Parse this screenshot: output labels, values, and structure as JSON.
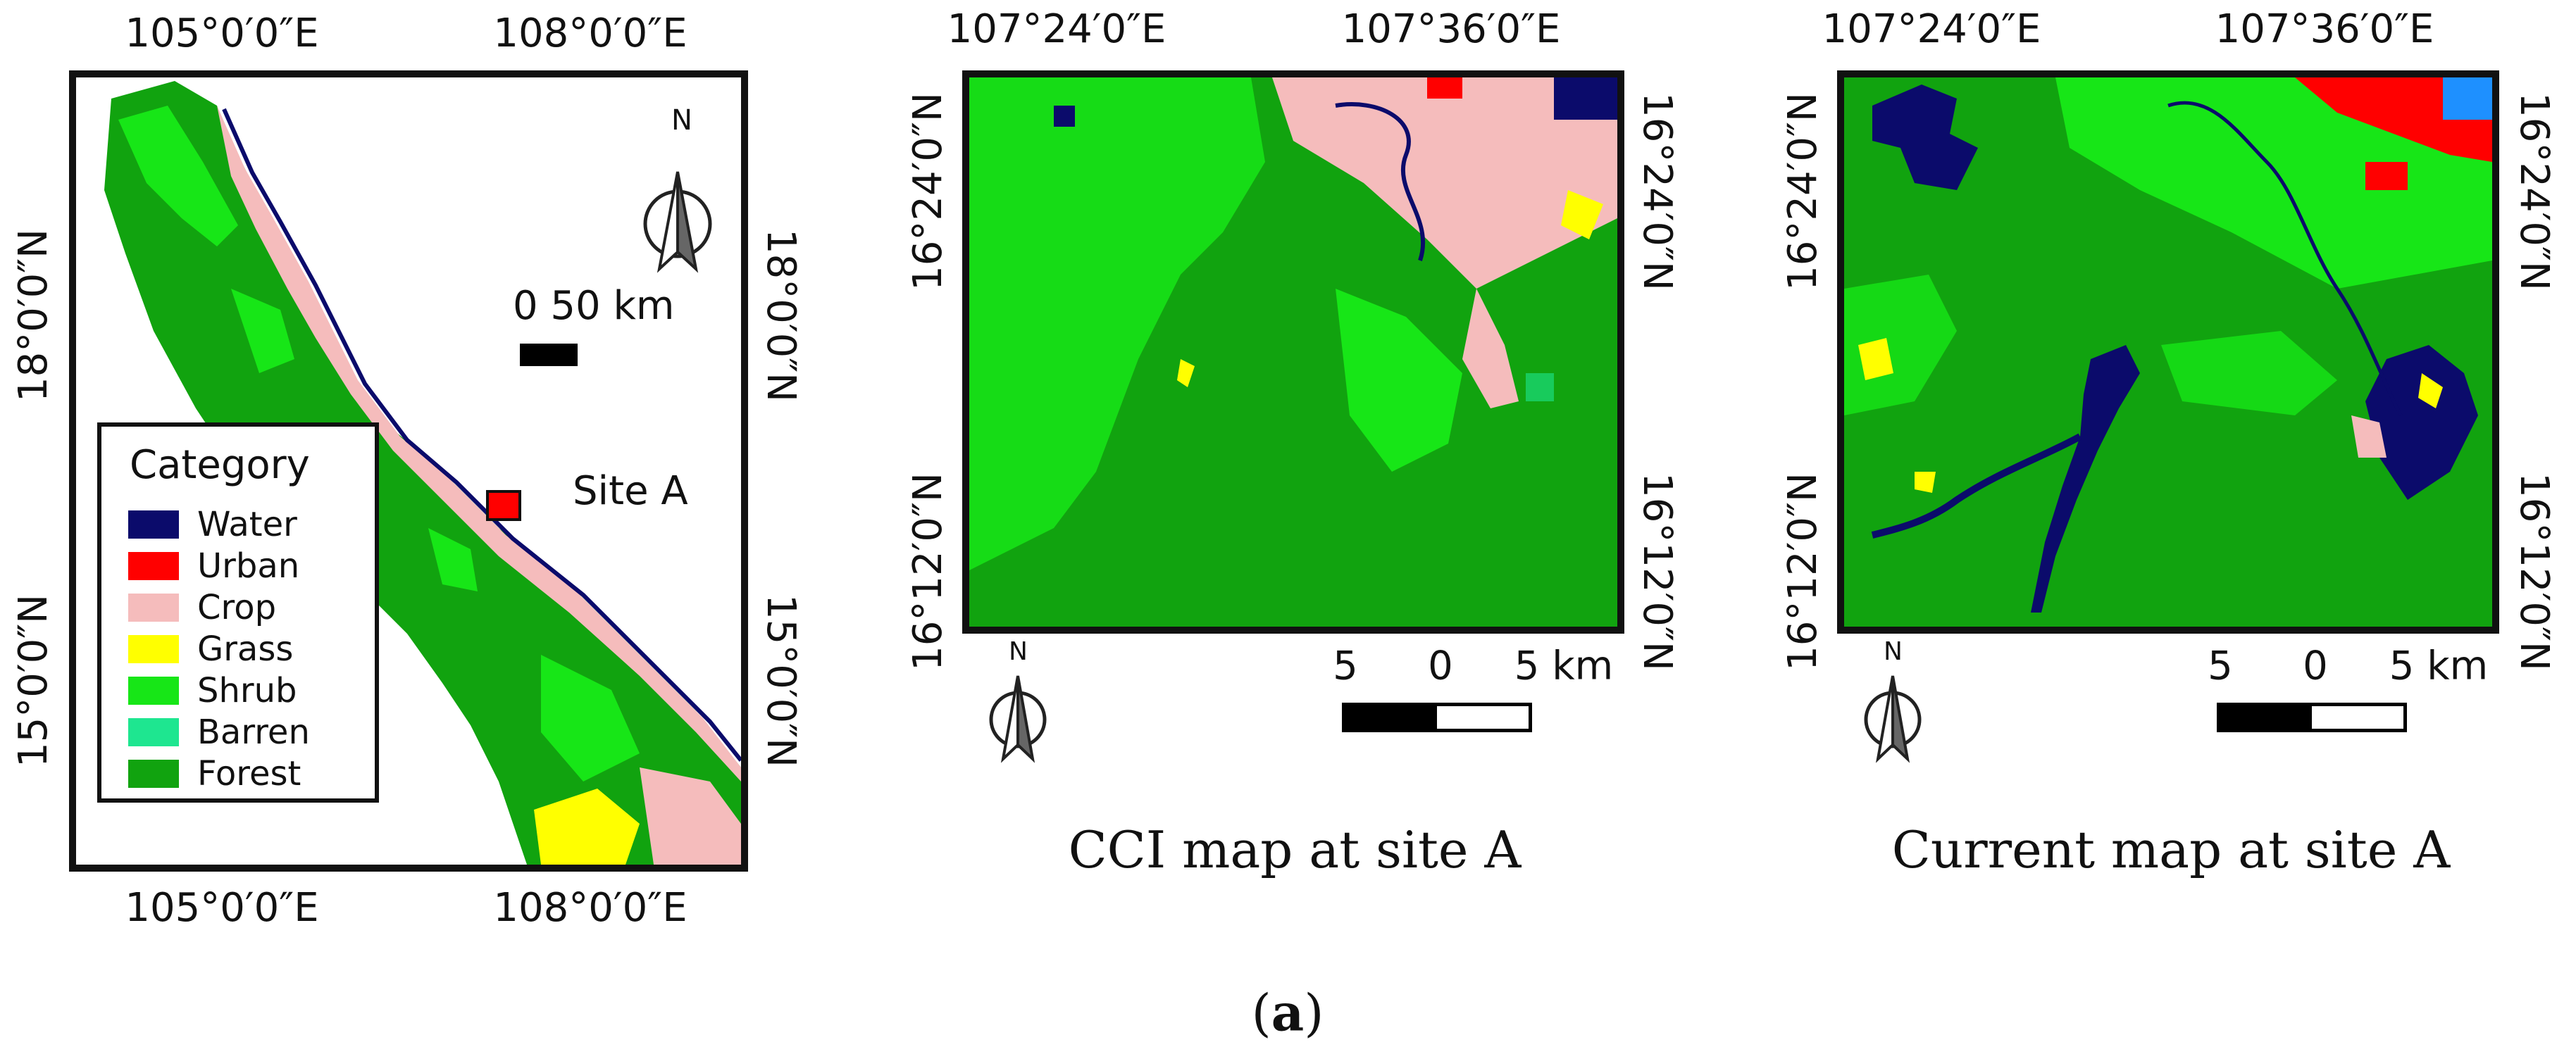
{
  "colors": {
    "Water": "#0b0b6b",
    "Urban": "#ff0000",
    "Crop": "#f5bcbc",
    "Grass": "#ffff00",
    "Shrub": "#17e617",
    "Barren": "#1ee690",
    "Forest": "#11a30f"
  },
  "overview": {
    "lon_labels": [
      "105°0′0″E",
      "108°0′0″E"
    ],
    "lat_labels": [
      "18°0′0″N",
      "15°0′0″N"
    ],
    "north": "N",
    "scale_label": "0 50 km",
    "site_label": "Site A",
    "legend": {
      "title": "Category",
      "items": [
        {
          "label": "Water",
          "color": "#0b0b6b"
        },
        {
          "label": "Urban",
          "color": "#ff0000"
        },
        {
          "label": "Crop",
          "color": "#f5bcbc"
        },
        {
          "label": "Grass",
          "color": "#ffff00"
        },
        {
          "label": "Shrub",
          "color": "#17e617"
        },
        {
          "label": "Barren",
          "color": "#1ee690"
        },
        {
          "label": "Forest",
          "color": "#11a30f"
        }
      ]
    }
  },
  "panels": [
    {
      "lon_labels": [
        "107°24′0″E",
        "107°36′0″E"
      ],
      "lat_labels": [
        "16°24′0″N",
        "16°12′0″N"
      ],
      "north": "N",
      "scale": {
        "left": "5",
        "mid": "0",
        "right": "5 km"
      },
      "caption": "CCI map at site A"
    },
    {
      "lon_labels": [
        "107°24′0″E",
        "107°36′0″E"
      ],
      "lat_labels": [
        "16°24′0″N",
        "16°12′0″N"
      ],
      "north": "N",
      "scale": {
        "left": "5",
        "mid": "0",
        "right": "5 km"
      },
      "caption": "Current map at site A"
    }
  ],
  "figure_label": "(a)"
}
